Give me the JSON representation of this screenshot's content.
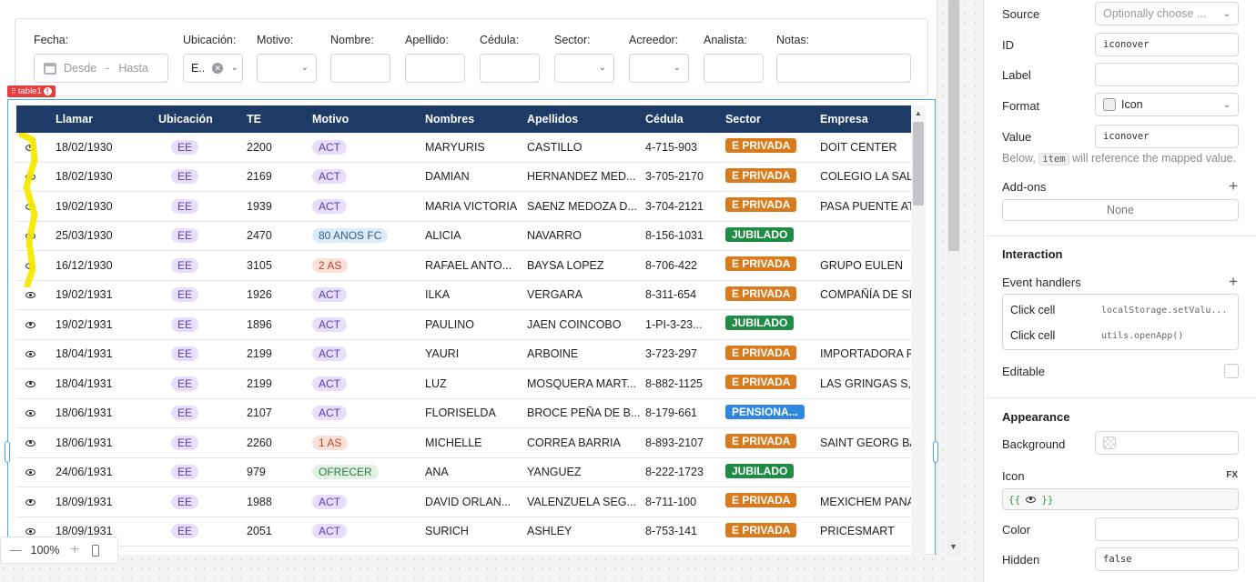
{
  "filters": {
    "fecha": {
      "label": "Fecha:",
      "desde": "Desde",
      "sep": "-",
      "hasta": "Hasta"
    },
    "ubicacion": {
      "label": "Ubicación:",
      "value": "E.."
    },
    "motivo": {
      "label": "Motivo:"
    },
    "nombre": {
      "label": "Nombre:"
    },
    "apellido": {
      "label": "Apellido:"
    },
    "cedula": {
      "label": "Cédula:"
    },
    "sector": {
      "label": "Sector:"
    },
    "acreedor": {
      "label": "Acreedor:"
    },
    "analista": {
      "label": "Analista:"
    },
    "notas": {
      "label": "Notas:"
    }
  },
  "table": {
    "badge": "table1",
    "columns": [
      "",
      "Llamar",
      "Ubicación",
      "TE",
      "Motivo",
      "Nombres",
      "Apellidos",
      "Cédula",
      "Sector",
      "Empresa"
    ],
    "rows": [
      {
        "llamar": "18/02/1930",
        "ubicacion": "EE",
        "te": "2200",
        "motivo": "ACT",
        "nombres": "MARYURIS",
        "apellidos": "CASTILLO",
        "cedula": "4-715-903",
        "sector": "E PRIVADA",
        "empresa": "DOIT CENTER"
      },
      {
        "llamar": "18/02/1930",
        "ubicacion": "EE",
        "te": "2169",
        "motivo": "ACT",
        "nombres": "DAMIAN",
        "apellidos": "HERNANDEZ MED...",
        "cedula": "3-705-2170",
        "sector": "E PRIVADA",
        "empresa": "COLEGIO LA SALL"
      },
      {
        "llamar": "19/02/1930",
        "ubicacion": "EE",
        "te": "1939",
        "motivo": "ACT",
        "nombres": "MARIA VICTORIA",
        "apellidos": "SAENZ MEDOZA D...",
        "cedula": "3-704-2121",
        "sector": "E PRIVADA",
        "empresa": "PASA PUENTE AT"
      },
      {
        "llamar": "25/03/1930",
        "ubicacion": "EE",
        "te": "2470",
        "motivo": "80 ANOS FC",
        "nombres": "ALICIA",
        "apellidos": "NAVARRO",
        "cedula": "8-156-1031",
        "sector": "JUBILADO",
        "empresa": ""
      },
      {
        "llamar": "16/12/1930",
        "ubicacion": "EE",
        "te": "3105",
        "motivo": "2 AS",
        "nombres": "RAFAEL ANTO...",
        "apellidos": "BAYSA LOPEZ",
        "cedula": "8-706-422",
        "sector": "E PRIVADA",
        "empresa": "GRUPO EULEN"
      },
      {
        "llamar": "19/02/1931",
        "ubicacion": "EE",
        "te": "1926",
        "motivo": "ACT",
        "nombres": "ILKA",
        "apellidos": "VERGARA",
        "cedula": "8-311-654",
        "sector": "E PRIVADA",
        "empresa": "COMPAÑÍA DE SE"
      },
      {
        "llamar": "19/02/1931",
        "ubicacion": "EE",
        "te": "1896",
        "motivo": "ACT",
        "nombres": "PAULINO",
        "apellidos": "JAEN COINCOBO",
        "cedula": "1-PI-3-23...",
        "sector": "JUBILADO",
        "empresa": ""
      },
      {
        "llamar": "18/04/1931",
        "ubicacion": "EE",
        "te": "2199",
        "motivo": "ACT",
        "nombres": "YAURI",
        "apellidos": "ARBOINE",
        "cedula": "3-723-297",
        "sector": "E PRIVADA",
        "empresa": "IMPORTADORA RI"
      },
      {
        "llamar": "18/04/1931",
        "ubicacion": "EE",
        "te": "2199",
        "motivo": "ACT",
        "nombres": "LUZ",
        "apellidos": "MOSQUERA MART...",
        "cedula": "8-882-1125",
        "sector": "E PRIVADA",
        "empresa": "LAS GRINGAS S,A"
      },
      {
        "llamar": "18/06/1931",
        "ubicacion": "EE",
        "te": "2107",
        "motivo": "ACT",
        "nombres": "FLORISELDA",
        "apellidos": "BROCE PEÑA DE B...",
        "cedula": "8-179-661",
        "sector": "PENSIONA...",
        "empresa": ""
      },
      {
        "llamar": "18/06/1931",
        "ubicacion": "EE",
        "te": "2260",
        "motivo": "1 AS",
        "nombres": "MICHELLE",
        "apellidos": "CORREA BARRIA",
        "cedula": "8-893-2107",
        "sector": "E PRIVADA",
        "empresa": "SAINT GEORG BA"
      },
      {
        "llamar": "24/06/1931",
        "ubicacion": "EE",
        "te": "979",
        "motivo": "OFRECER",
        "nombres": "ANA",
        "apellidos": "YANGUEZ",
        "cedula": "8-222-1723",
        "sector": "JUBILADO",
        "empresa": ""
      },
      {
        "llamar": "18/09/1931",
        "ubicacion": "EE",
        "te": "1988",
        "motivo": "ACT",
        "nombres": "DAVID ORLAN...",
        "apellidos": "VALENZUELA SEG...",
        "cedula": "8-711-100",
        "sector": "E PRIVADA",
        "empresa": "MEXICHEM PANA"
      },
      {
        "llamar": "18/09/1931",
        "ubicacion": "EE",
        "te": "2051",
        "motivo": "ACT",
        "nombres": "SURICH",
        "apellidos": "ASHLEY",
        "cedula": "8-753-141",
        "sector": "E PRIVADA",
        "empresa": "PRICESMART"
      }
    ]
  },
  "colors": {
    "header_bg": "#1e3b68",
    "ee_pill": "#e6defa",
    "act_pill": "#e6defa",
    "anos_pill": "#dcecf8",
    "as_pill": "#fbe0d8",
    "ofrecer_pill": "#dff2e3",
    "e_privada": "#d97a1c",
    "jubilado": "#1f8c45",
    "pensionado": "#2e86de",
    "selection_highlight": "#f5e800"
  },
  "zoom": {
    "minus": "—",
    "level": "100%",
    "plus": "+"
  },
  "panel": {
    "source": {
      "label": "Source",
      "placeholder": "Optionally choose ..."
    },
    "id": {
      "label": "ID",
      "value": "iconover"
    },
    "label": {
      "label": "Label",
      "value": ""
    },
    "format": {
      "label": "Format",
      "value": "Icon"
    },
    "value": {
      "label": "Value",
      "value": "iconover"
    },
    "help": {
      "before": "Below,",
      "code": "item",
      "after": "will reference the mapped value."
    },
    "addons": {
      "label": "Add-ons",
      "value": "None"
    },
    "interaction": {
      "title": "Interaction"
    },
    "event_handlers": {
      "label": "Event handlers",
      "items": [
        {
          "event": "Click cell",
          "action": "localStorage.setValu..."
        },
        {
          "event": "Click cell",
          "action": "utils.openApp()"
        }
      ]
    },
    "editable": {
      "label": "Editable"
    },
    "appearance": {
      "title": "Appearance"
    },
    "background": {
      "label": "Background"
    },
    "icon": {
      "label": "Icon",
      "fx": "FX",
      "open": "{{",
      "close": "}}"
    },
    "color": {
      "label": "Color"
    },
    "hidden": {
      "label": "Hidden",
      "value": "false"
    }
  }
}
